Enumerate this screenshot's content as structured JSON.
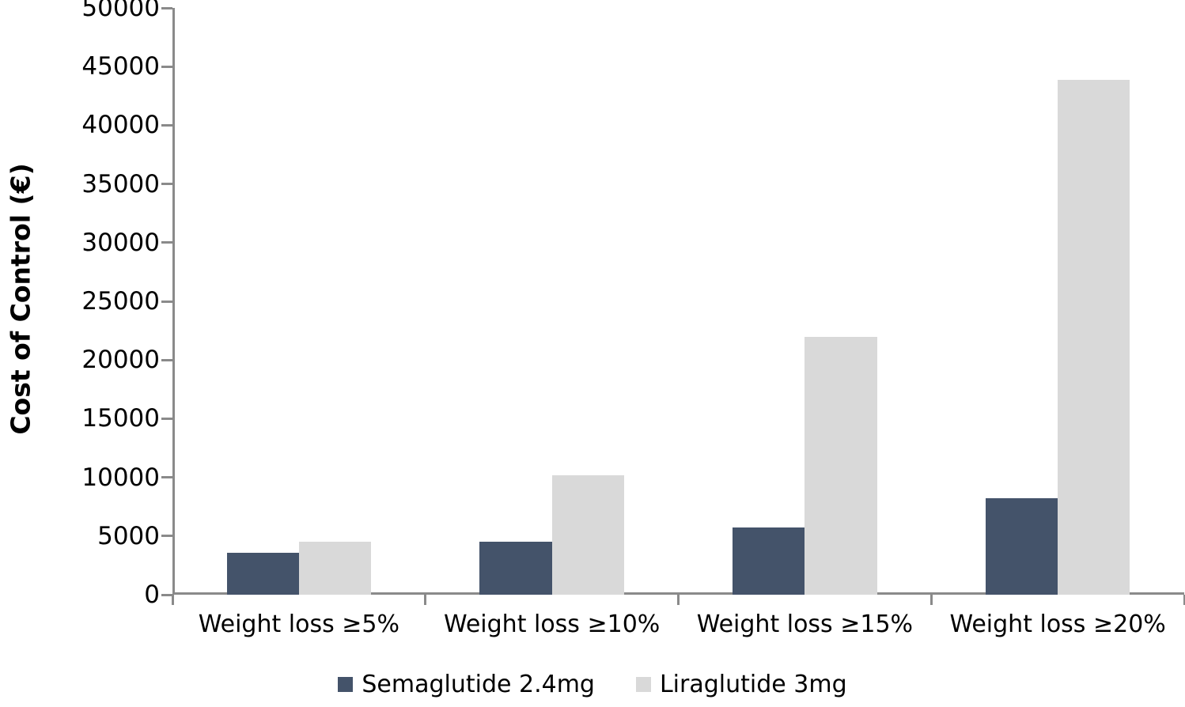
{
  "chart_data": {
    "type": "bar",
    "title": "",
    "xlabel": "",
    "ylabel": "Cost of Control (€)",
    "categories": [
      "Weight loss ≥5%",
      "Weight loss ≥10%",
      "Weight loss ≥15%",
      "Weight loss ≥20%"
    ],
    "series": [
      {
        "name": "Semaglutide 2.4mg",
        "color": "#44536A",
        "values": [
          3600,
          4500,
          5700,
          8200
        ]
      },
      {
        "name": "Liraglutide 3mg",
        "color": "#D9D9D9",
        "values": [
          4500,
          10200,
          22000,
          43900
        ]
      }
    ],
    "ylim": [
      0,
      50000
    ],
    "ytick_step": 5000,
    "ytick_labels": [
      "0",
      "5000",
      "10000",
      "15000",
      "20000",
      "25000",
      "30000",
      "35000",
      "40000",
      "45000",
      "50000"
    ],
    "grid": false,
    "legend_position": "bottom",
    "bar_gap_ratio": 1.5,
    "axis_color": "#8a8a8a",
    "text_color": "#000000",
    "background_color": "#ffffff"
  }
}
